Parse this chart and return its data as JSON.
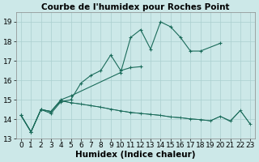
{
  "title": "Courbe de l'humidex pour Roches Point",
  "xlabel": "Humidex (Indice chaleur)",
  "bg_color": "#cce8e8",
  "grid_color": "#aacfcf",
  "line_color": "#1a6b5a",
  "x_values": [
    0,
    1,
    2,
    3,
    4,
    5,
    6,
    7,
    8,
    9,
    10,
    11,
    12,
    13,
    14,
    15,
    16,
    17,
    18,
    19,
    20,
    21,
    22,
    23
  ],
  "series1": [
    14.2,
    13.35,
    14.5,
    14.3,
    14.9,
    15.0,
    15.85,
    16.25,
    16.5,
    17.3,
    16.5,
    16.65,
    16.7,
    null,
    null,
    null,
    null,
    null,
    null,
    null,
    null,
    null,
    null,
    null
  ],
  "series2": [
    14.2,
    13.35,
    14.5,
    14.4,
    15.0,
    15.2,
    null,
    null,
    null,
    null,
    16.4,
    18.2,
    18.6,
    17.6,
    19.0,
    18.75,
    18.2,
    17.5,
    17.5,
    null,
    17.9,
    null,
    null,
    null
  ],
  "series3": [
    14.2,
    13.35,
    14.5,
    14.4,
    14.95,
    14.85,
    14.78,
    14.7,
    14.62,
    14.52,
    14.43,
    14.35,
    14.3,
    14.25,
    14.2,
    14.12,
    14.08,
    14.02,
    13.98,
    13.92,
    14.15,
    13.92,
    14.45,
    13.75
  ],
  "series4": [
    14.2,
    13.35,
    14.5,
    14.4,
    14.95,
    14.85,
    14.78,
    14.7,
    14.62,
    14.52,
    14.43,
    14.35,
    14.3,
    14.25,
    14.2,
    14.12,
    14.08,
    14.02,
    13.98,
    13.92,
    14.15,
    13.88,
    14.45,
    13.75
  ],
  "ylim_min": 13.0,
  "ylim_max": 19.5,
  "yticks": [
    13,
    14,
    15,
    16,
    17,
    18,
    19
  ],
  "xticks": [
    0,
    1,
    2,
    3,
    4,
    5,
    6,
    7,
    8,
    9,
    10,
    11,
    12,
    13,
    14,
    15,
    16,
    17,
    18,
    19,
    20,
    21,
    22,
    23
  ],
  "title_fontsize": 7.5,
  "label_fontsize": 7.5,
  "tick_fontsize": 6.5
}
